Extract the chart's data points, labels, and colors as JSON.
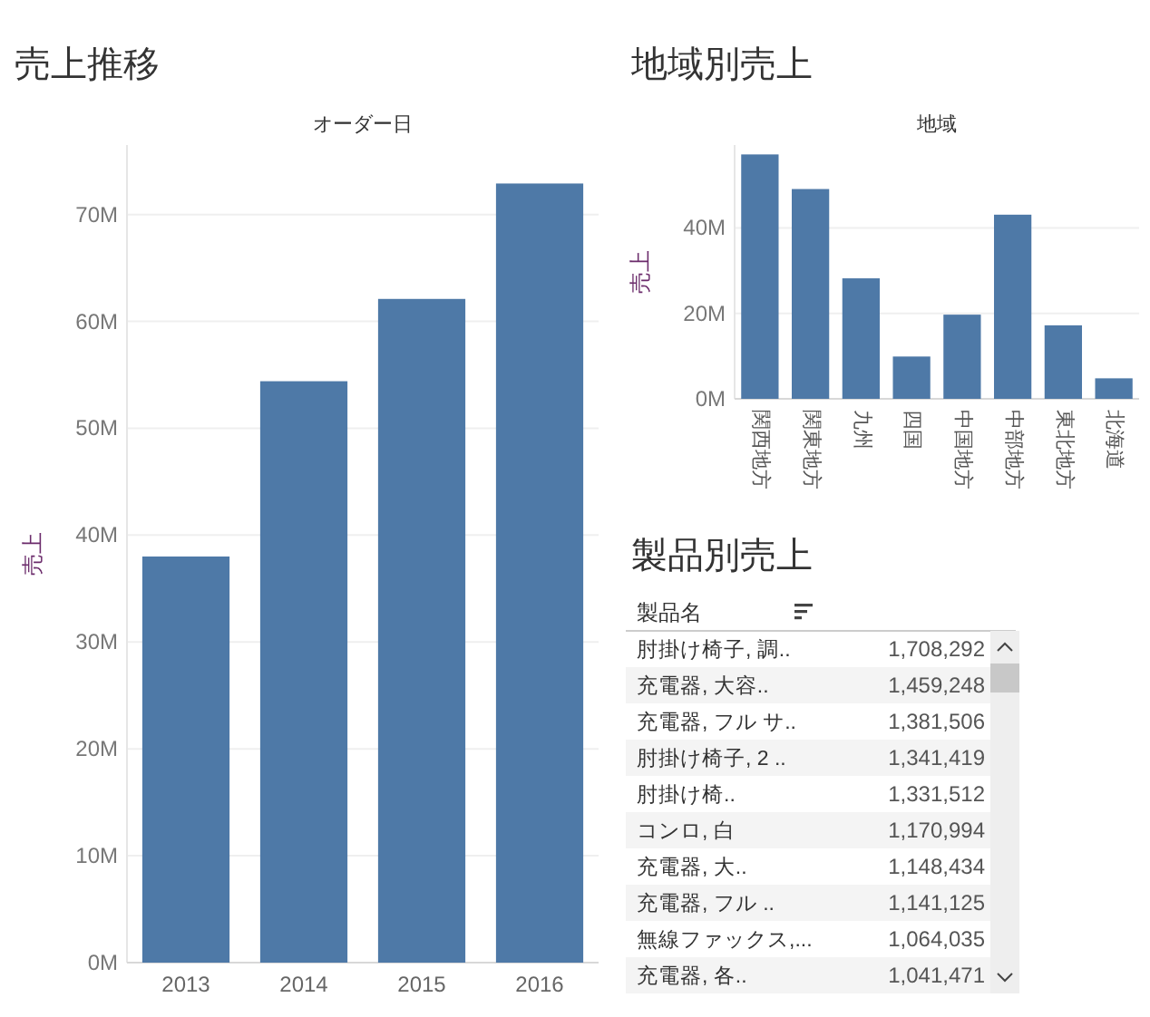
{
  "chart_data": [
    {
      "type": "bar",
      "title": "売上推移",
      "xlabel": "オーダー日",
      "ylabel": "売上",
      "categories": [
        "2013",
        "2014",
        "2015",
        "2016"
      ],
      "values": [
        38.0,
        54.4,
        62.1,
        72.9
      ],
      "color": "#4e79a7",
      "ylim": [
        0,
        76.5
      ],
      "yticks": [
        {
          "value": 0,
          "label": "0M"
        },
        {
          "value": 10,
          "label": "10M"
        },
        {
          "value": 20,
          "label": "20M"
        },
        {
          "value": 30,
          "label": "30M"
        },
        {
          "value": 40,
          "label": "40M"
        },
        {
          "value": 50,
          "label": "50M"
        },
        {
          "value": 60,
          "label": "60M"
        },
        {
          "value": 70,
          "label": "70M"
        }
      ],
      "grid": "y"
    },
    {
      "type": "bar",
      "title": "地域別売上",
      "xlabel": "地域",
      "ylabel": "売上",
      "categories": [
        "関西地方",
        "関東地方",
        "九州",
        "四国",
        "中国地方",
        "中部地方",
        "東北地方",
        "北海道"
      ],
      "values": [
        57.2,
        49.1,
        28.2,
        9.9,
        19.7,
        43.1,
        17.2,
        4.8
      ],
      "color": "#4e79a7",
      "ylim": [
        0,
        59.4
      ],
      "yticks": [
        {
          "value": 0,
          "label": "0M"
        },
        {
          "value": 20,
          "label": "20M"
        },
        {
          "value": 40,
          "label": "40M"
        }
      ],
      "grid": "y"
    },
    {
      "type": "other",
      "title": "製品別売上",
      "xlabel": "製品名",
      "categories": [
        "肘掛け椅子, 調..",
        "充電器, 大容..",
        "充電器, フル サ..",
        "肘掛け椅子, 2 ..",
        "肘掛け椅..",
        "コンロ, 白",
        "充電器, 大..",
        "充電器, フル ..",
        "無線ファックス,...",
        "充電器, 各.."
      ],
      "value_labels": [
        "1,708,292",
        "1,459,248",
        "1,381,506",
        "1,341,419",
        "1,331,512",
        "1,170,994",
        "1,148,434",
        "1,141,125",
        "1,064,035",
        "1,041,471"
      ]
    }
  ]
}
